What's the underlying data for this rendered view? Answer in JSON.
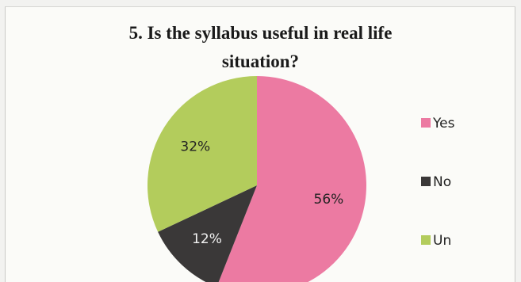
{
  "title_lines": [
    "5. Is the syllabus useful in real life",
    "situation?"
  ],
  "chart_data": {
    "type": "pie",
    "title": "5. Is the syllabus useful in real life situation?",
    "slices": [
      {
        "label": "Yes",
        "value": 56,
        "display": "56%",
        "color": "#ec7aa2",
        "label_color": "#222222"
      },
      {
        "label": "No",
        "value": 12,
        "display": "12%",
        "color": "#3a3838",
        "label_color": "#f2f2f2"
      },
      {
        "label": "Un",
        "value": 32,
        "display": "32%",
        "color": "#b3cc5c",
        "label_color": "#222222"
      }
    ],
    "legend_position": "right",
    "start_angle": "12 o'clock, clockwise"
  }
}
